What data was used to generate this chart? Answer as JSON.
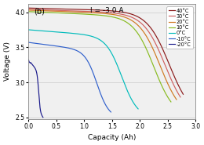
{
  "title_label": "(b)",
  "annotation": "I = -3.0 A",
  "xlabel": "Capacity (Ah)",
  "ylabel": "Voltage (V)",
  "xlim": [
    0,
    3
  ],
  "ylim": [
    2.48,
    4.12
  ],
  "xticks": [
    0,
    0.5,
    1.0,
    1.5,
    2.0,
    2.5,
    3.0
  ],
  "yticks": [
    2.5,
    3.0,
    3.5,
    4.0
  ],
  "temperatures": [
    "40°C",
    "30°C",
    "20°C",
    "10°C",
    "0°C",
    "-10°C",
    "-20°C"
  ],
  "colors": [
    "#8B1A1A",
    "#D06060",
    "#D07820",
    "#88BB20",
    "#00BBBB",
    "#3060CC",
    "#18188A"
  ],
  "max_capacities": [
    2.78,
    2.73,
    2.66,
    2.56,
    1.97,
    1.48,
    0.26
  ],
  "start_voltages": [
    4.06,
    4.04,
    4.03,
    4.01,
    3.75,
    3.57,
    3.32
  ],
  "knee_positions": [
    0.91,
    0.9,
    0.89,
    0.88,
    0.85,
    0.83,
    0.7
  ],
  "knee_sharpness": [
    14,
    14,
    14,
    14,
    14,
    14,
    18
  ],
  "flat_slopes": [
    0.06,
    0.07,
    0.08,
    0.09,
    0.12,
    0.15,
    0.25
  ],
  "background_color": "#f0f0f0",
  "grid_color": "#cccccc"
}
